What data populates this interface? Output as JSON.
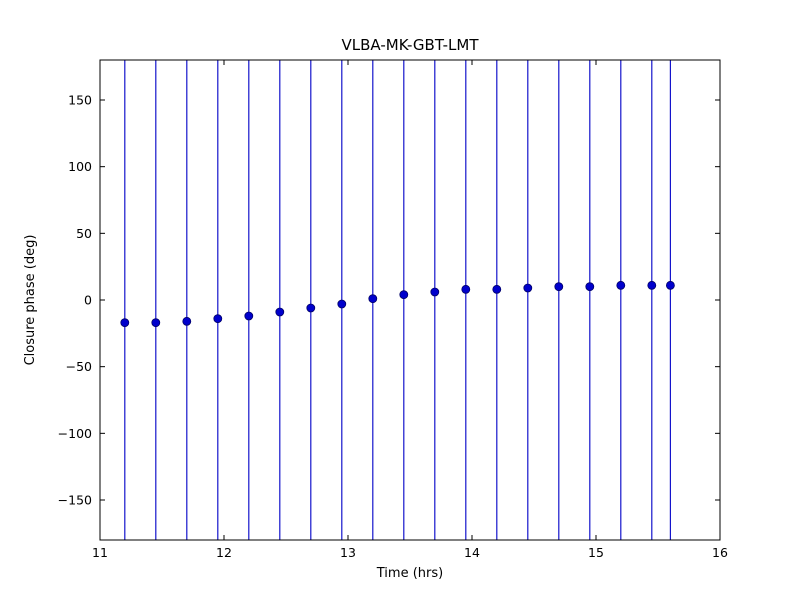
{
  "chart_data": {
    "type": "scatter",
    "title": "VLBA-MK-GBT-LMT",
    "xlabel": "Time (hrs)",
    "ylabel": "Closure phase (deg)",
    "xlim": [
      11,
      16
    ],
    "ylim": [
      -180,
      180
    ],
    "xticks": [
      11,
      12,
      13,
      14,
      15,
      16
    ],
    "yticks": [
      -150,
      -100,
      -50,
      0,
      50,
      100,
      150
    ],
    "grid": false,
    "legend": "none",
    "marker": "circle",
    "errorbars": "vertical lines spanning full y-range, clipped at axes frame",
    "colors": {
      "marker": "#0000cc",
      "marker_edge": "#000066",
      "errorbar": "#1414cc",
      "axes": "#000000",
      "background": "#ffffff"
    },
    "series": [
      {
        "name": "closure phase",
        "x": [
          11.2,
          11.45,
          11.7,
          11.95,
          12.2,
          12.45,
          12.7,
          12.95,
          13.2,
          13.45,
          13.7,
          13.95,
          14.2,
          14.45,
          14.7,
          14.95,
          15.2,
          15.45,
          15.6
        ],
        "y": [
          -17,
          -17,
          -16,
          -14,
          -12,
          -9,
          -6,
          -3,
          1,
          4,
          6,
          8,
          8,
          9,
          10,
          10,
          11,
          11,
          11
        ],
        "yerr": 180
      }
    ]
  }
}
